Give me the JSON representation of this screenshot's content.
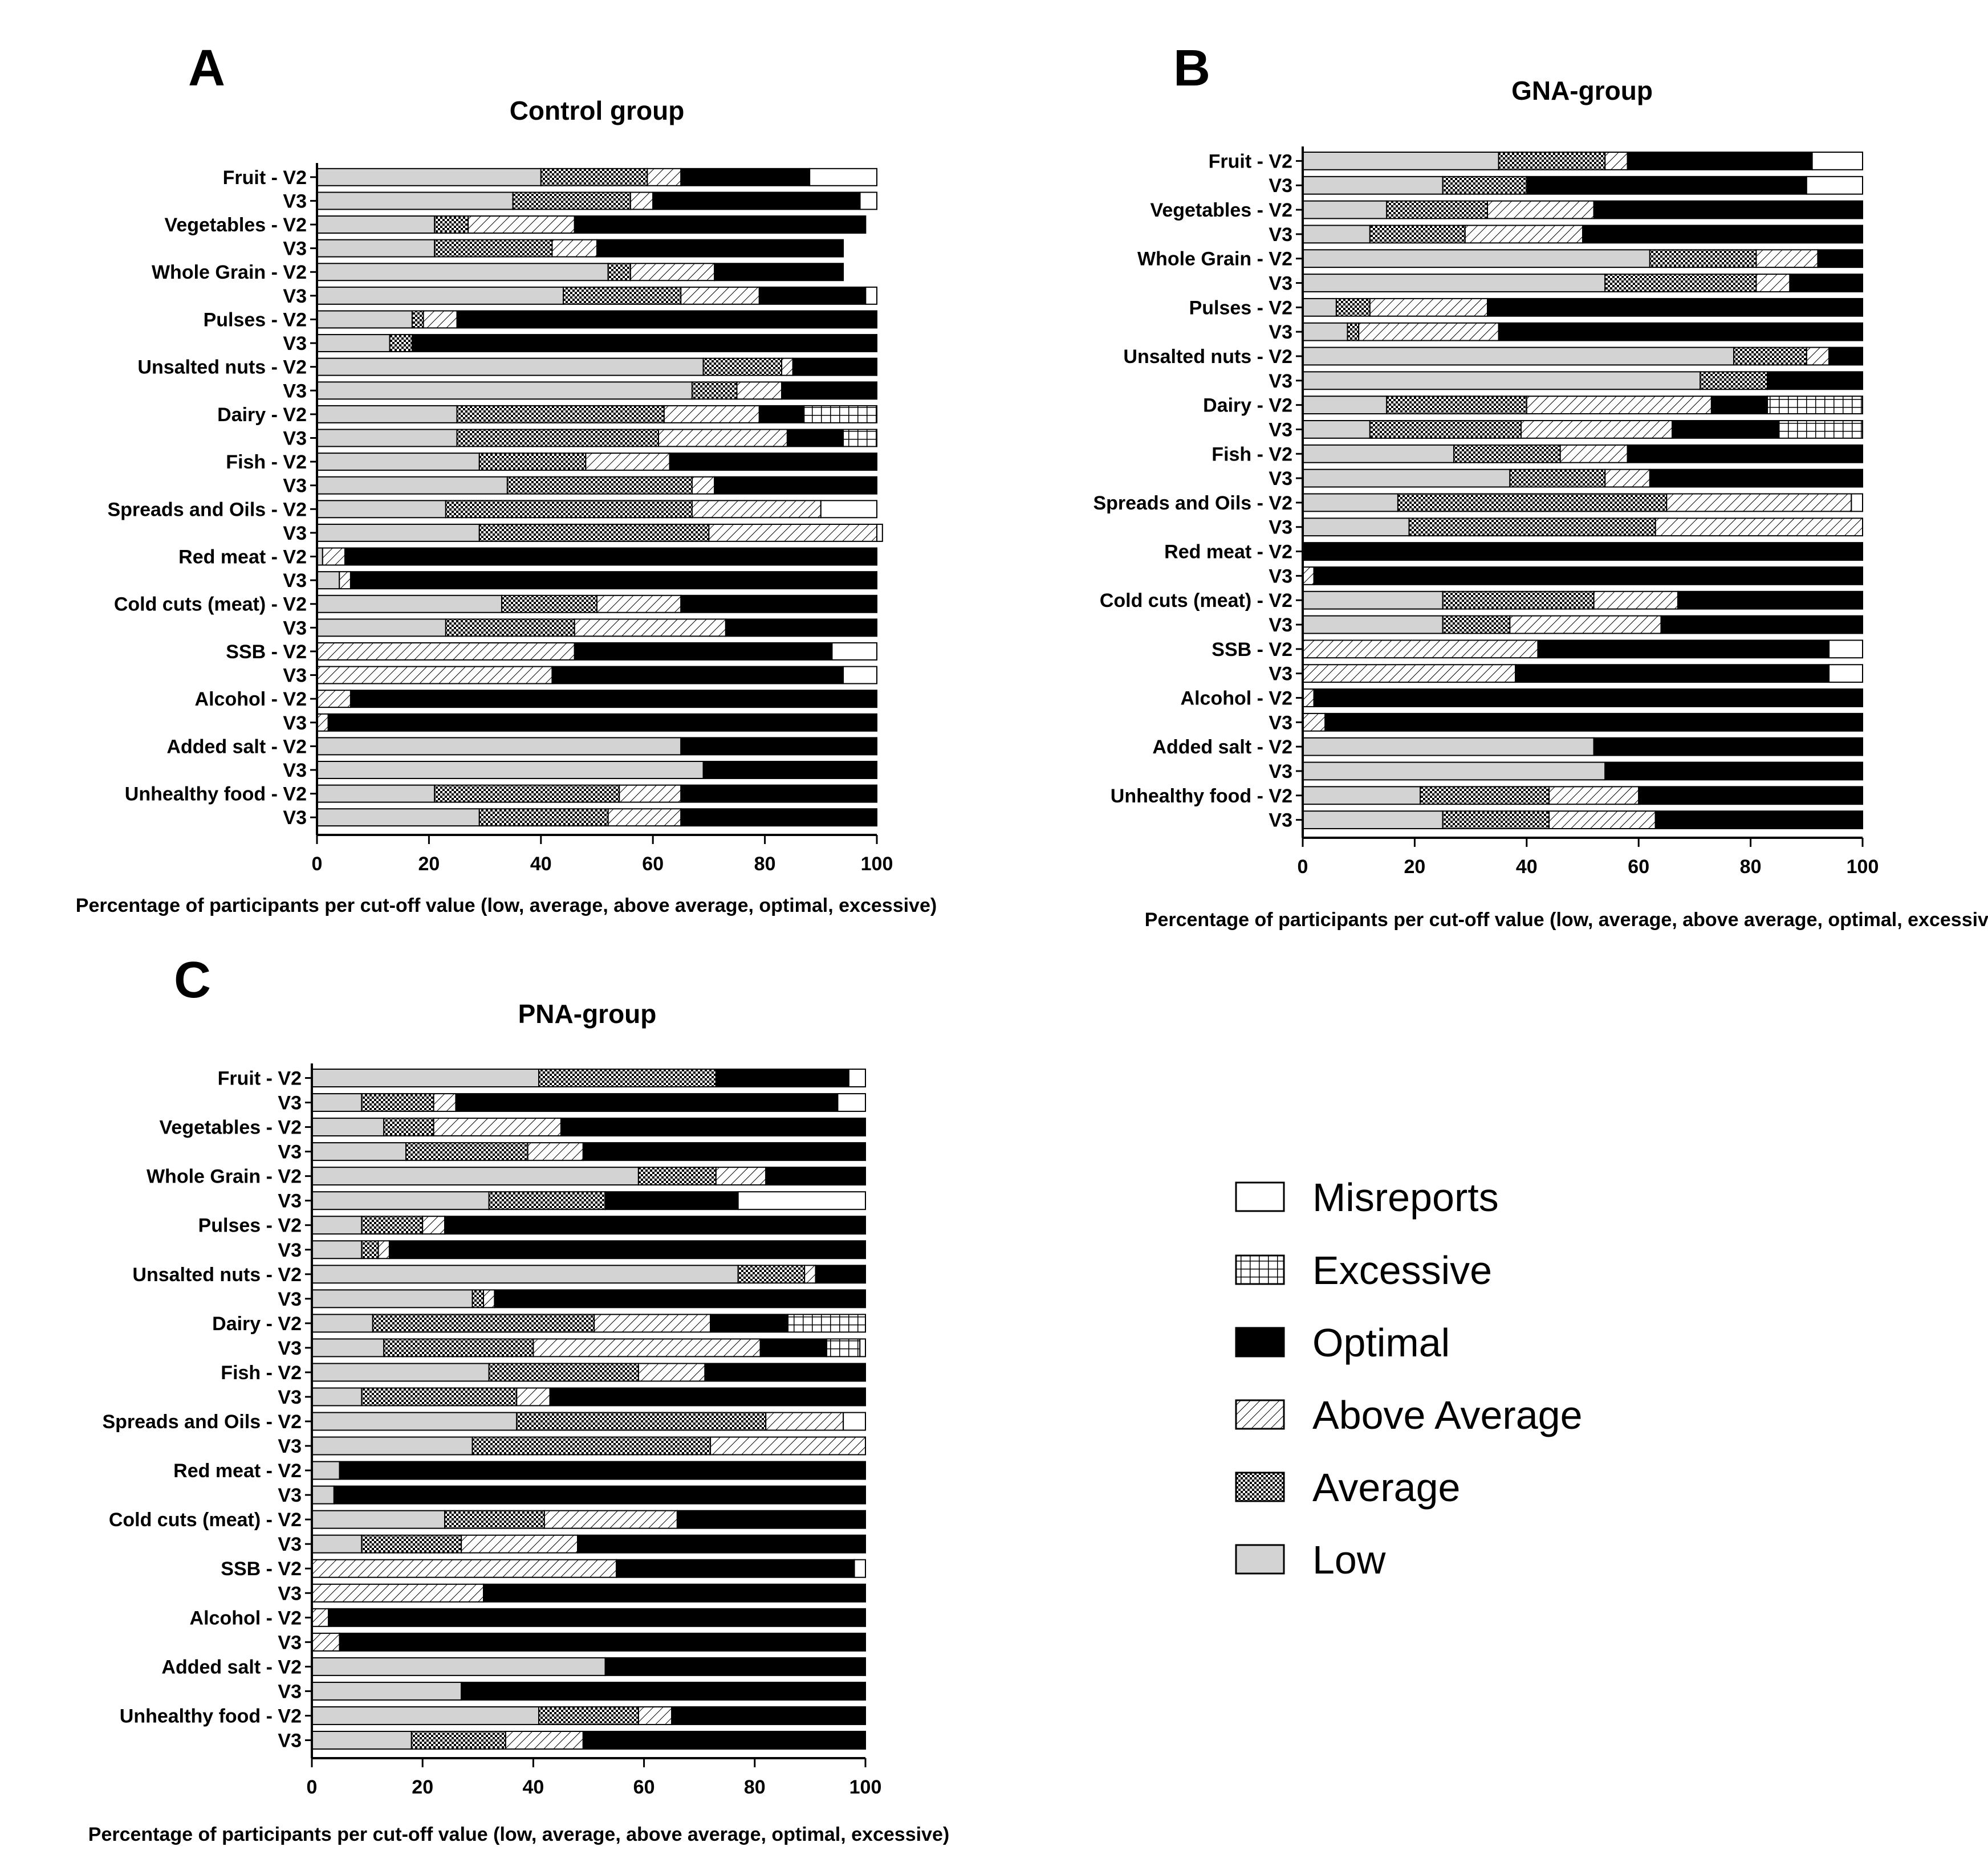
{
  "figure": {
    "xlabel": "Percentage of participants per cut-off value (low, average, above average, optimal, excessive)",
    "xticks": [
      0,
      20,
      40,
      60,
      80,
      100
    ]
  },
  "legend": [
    {
      "key": "misreports",
      "label": "Misreports"
    },
    {
      "key": "excessive",
      "label": "Excessive"
    },
    {
      "key": "optimal",
      "label": "Optimal"
    },
    {
      "key": "above_average",
      "label": "Above Average"
    },
    {
      "key": "average",
      "label": "Average"
    },
    {
      "key": "low",
      "label": "Low"
    }
  ],
  "colors": {
    "low": "#d3d3d3",
    "optimal": "#000000",
    "misreports": "#ffffff",
    "outline": "#000000"
  },
  "chart_data": [
    {
      "type": "bar",
      "orientation": "horizontal",
      "stacked": true,
      "panel": "A",
      "title": "Control group",
      "xlabel": "Percentage of participants per cut-off value (low, average, above average, optimal, excessive)",
      "xlim": [
        0,
        100
      ],
      "categories": [
        "Fruit - V2",
        "V3",
        "Vegetables - V2",
        "V3",
        "Whole Grain - V2",
        "V3",
        "Pulses - V2",
        "V3",
        "Unsalted nuts - V2",
        "V3",
        "Dairy - V2",
        "V3",
        "Fish - V2",
        "V3",
        "Spreads and Oils - V2",
        "V3",
        "Red meat - V2",
        "V3",
        "Cold cuts (meat) - V2",
        "V3",
        "SSB - V2",
        "V3",
        "Alcohol - V2",
        "V3",
        "Added salt - V2",
        "V3",
        "Unhealthy food - V2",
        "V3"
      ],
      "series": [
        {
          "name": "Low",
          "key": "low",
          "values": [
            40,
            35,
            21,
            21,
            52,
            44,
            17,
            13,
            69,
            67,
            25,
            25,
            29,
            34,
            23,
            29,
            1,
            4,
            33,
            23,
            0,
            0,
            0,
            0,
            65,
            69,
            21,
            29
          ]
        },
        {
          "name": "Average",
          "key": "average",
          "values": [
            19,
            21,
            6,
            21,
            4,
            21,
            2,
            4,
            14,
            8,
            37,
            36,
            19,
            33,
            44,
            41,
            0,
            0,
            17,
            23,
            0,
            0,
            0,
            0,
            0,
            0,
            33,
            23
          ]
        },
        {
          "name": "Above Average",
          "key": "above_average",
          "values": [
            6,
            4,
            19,
            8,
            15,
            14,
            6,
            0,
            2,
            8,
            17,
            23,
            15,
            4,
            23,
            30,
            4,
            2,
            15,
            27,
            46,
            42,
            6,
            2,
            0,
            0,
            11,
            13
          ]
        },
        {
          "name": "Optimal",
          "key": "optimal",
          "values": [
            23,
            37,
            52,
            44,
            23,
            19,
            75,
            83,
            15,
            17,
            8,
            10,
            37,
            29,
            0,
            0,
            95,
            94,
            35,
            27,
            46,
            52,
            94,
            98,
            35,
            31,
            35,
            35
          ]
        },
        {
          "name": "Excessive",
          "key": "excessive",
          "values": [
            0,
            0,
            0,
            0,
            0,
            0,
            0,
            0,
            0,
            0,
            13,
            6,
            0,
            0,
            0,
            0,
            0,
            0,
            0,
            0,
            0,
            0,
            0,
            0,
            0,
            0,
            0,
            0
          ]
        },
        {
          "name": "Misreports",
          "key": "misreports",
          "values": [
            12,
            3,
            0,
            0,
            0,
            2,
            0,
            0,
            0,
            0,
            0,
            0,
            0,
            0,
            10,
            1,
            0,
            0,
            0,
            0,
            8,
            6,
            0,
            0,
            0,
            0,
            0,
            0
          ]
        }
      ]
    },
    {
      "type": "bar",
      "orientation": "horizontal",
      "stacked": true,
      "panel": "B",
      "title": "GNA-group",
      "xlabel": "Percentage of participants per cut-off value (low, average, above average, optimal, excessive)",
      "xlim": [
        0,
        100
      ],
      "categories": [
        "Fruit - V2",
        "V3",
        "Vegetables - V2",
        "V3",
        "Whole Grain - V2",
        "V3",
        "Pulses - V2",
        "V3",
        "Unsalted nuts - V2",
        "V3",
        "Dairy - V2",
        "V3",
        "Fish - V2",
        "V3",
        "Spreads and Oils - V2",
        "V3",
        "Red meat - V2",
        "V3",
        "Cold cuts (meat) - V2",
        "V3",
        "SSB - V2",
        "V3",
        "Alcohol - V2",
        "V3",
        "Added salt - V2",
        "V3",
        "Unhealthy food - V2",
        "V3"
      ],
      "series": [
        {
          "name": "Low",
          "key": "low",
          "values": [
            35,
            25,
            15,
            12,
            62,
            54,
            6,
            8,
            77,
            71,
            15,
            12,
            27,
            37,
            17,
            19,
            0,
            0,
            25,
            25,
            0,
            0,
            0,
            0,
            52,
            54,
            21,
            25
          ]
        },
        {
          "name": "Average",
          "key": "average",
          "values": [
            19,
            15,
            18,
            17,
            19,
            27,
            6,
            2,
            13,
            12,
            25,
            27,
            19,
            17,
            48,
            44,
            0,
            0,
            27,
            12,
            0,
            0,
            0,
            0,
            0,
            0,
            23,
            19
          ]
        },
        {
          "name": "Above Average",
          "key": "above_average",
          "values": [
            4,
            0,
            19,
            21,
            11,
            6,
            21,
            25,
            4,
            0,
            33,
            27,
            12,
            8,
            33,
            37,
            0,
            2,
            15,
            27,
            42,
            38,
            2,
            4,
            0,
            0,
            16,
            19
          ]
        },
        {
          "name": "Optimal",
          "key": "optimal",
          "values": [
            33,
            50,
            48,
            50,
            8,
            13,
            67,
            65,
            6,
            17,
            10,
            19,
            42,
            38,
            0,
            0,
            100,
            98,
            33,
            36,
            52,
            56,
            98,
            96,
            48,
            46,
            40,
            37
          ]
        },
        {
          "name": "Excessive",
          "key": "excessive",
          "values": [
            0,
            0,
            0,
            0,
            0,
            0,
            0,
            0,
            0,
            0,
            17,
            15,
            0,
            0,
            0,
            0,
            0,
            0,
            0,
            0,
            0,
            0,
            0,
            0,
            0,
            0,
            0,
            0
          ]
        },
        {
          "name": "Misreports",
          "key": "misreports",
          "values": [
            9,
            10,
            0,
            0,
            0,
            0,
            0,
            0,
            0,
            0,
            0,
            0,
            0,
            0,
            2,
            0,
            0,
            0,
            0,
            0,
            6,
            6,
            0,
            0,
            0,
            0,
            0,
            0
          ]
        }
      ]
    },
    {
      "type": "bar",
      "orientation": "horizontal",
      "stacked": true,
      "panel": "C",
      "title": "PNA-group",
      "xlabel": "Percentage of participants per cut-off value (low, average, above average, optimal, excessive)",
      "xlim": [
        0,
        100
      ],
      "categories": [
        "Fruit - V2",
        "V3",
        "Vegetables - V2",
        "V3",
        "Whole Grain - V2",
        "V3",
        "Pulses - V2",
        "V3",
        "Unsalted nuts - V2",
        "V3",
        "Dairy - V2",
        "V3",
        "Fish - V2",
        "V3",
        "Spreads and Oils - V2",
        "V3",
        "Red meat - V2",
        "V3",
        "Cold cuts (meat) - V2",
        "V3",
        "SSB - V2",
        "V3",
        "Alcohol - V2",
        "V3",
        "Added salt - V2",
        "V3",
        "Unhealthy food - V2",
        "V3"
      ],
      "series": [
        {
          "name": "Low",
          "key": "low",
          "values": [
            41,
            9,
            13,
            17,
            59,
            32,
            9,
            9,
            77,
            29,
            11,
            13,
            32,
            9,
            37,
            29,
            5,
            4,
            24,
            9,
            0,
            0,
            0,
            0,
            53,
            27,
            41,
            18
          ]
        },
        {
          "name": "Average",
          "key": "average",
          "values": [
            32,
            13,
            9,
            22,
            14,
            21,
            11,
            3,
            12,
            2,
            40,
            27,
            27,
            28,
            45,
            43,
            0,
            0,
            18,
            18,
            0,
            0,
            0,
            0,
            0,
            0,
            18,
            17
          ]
        },
        {
          "name": "Above Average",
          "key": "above_average",
          "values": [
            0,
            4,
            23,
            10,
            9,
            0,
            4,
            2,
            2,
            2,
            21,
            41,
            12,
            6,
            14,
            28,
            0,
            0,
            24,
            21,
            55,
            31,
            3,
            5,
            0,
            0,
            6,
            14
          ]
        },
        {
          "name": "Optimal",
          "key": "optimal",
          "values": [
            24,
            69,
            55,
            51,
            18,
            24,
            76,
            86,
            9,
            67,
            14,
            12,
            29,
            57,
            0,
            0,
            95,
            96,
            34,
            52,
            43,
            69,
            97,
            95,
            47,
            73,
            35,
            51
          ]
        },
        {
          "name": "Excessive",
          "key": "excessive",
          "values": [
            0,
            0,
            0,
            0,
            0,
            0,
            0,
            0,
            0,
            0,
            14,
            6,
            0,
            0,
            0,
            0,
            0,
            0,
            0,
            0,
            0,
            0,
            0,
            0,
            0,
            0,
            0,
            0
          ]
        },
        {
          "name": "Misreports",
          "key": "misreports",
          "values": [
            3,
            5,
            0,
            0,
            0,
            23,
            0,
            0,
            0,
            0,
            0,
            1,
            0,
            0,
            4,
            0,
            0,
            0,
            0,
            0,
            2,
            0,
            0,
            0,
            0,
            0,
            0,
            0
          ]
        }
      ]
    }
  ]
}
